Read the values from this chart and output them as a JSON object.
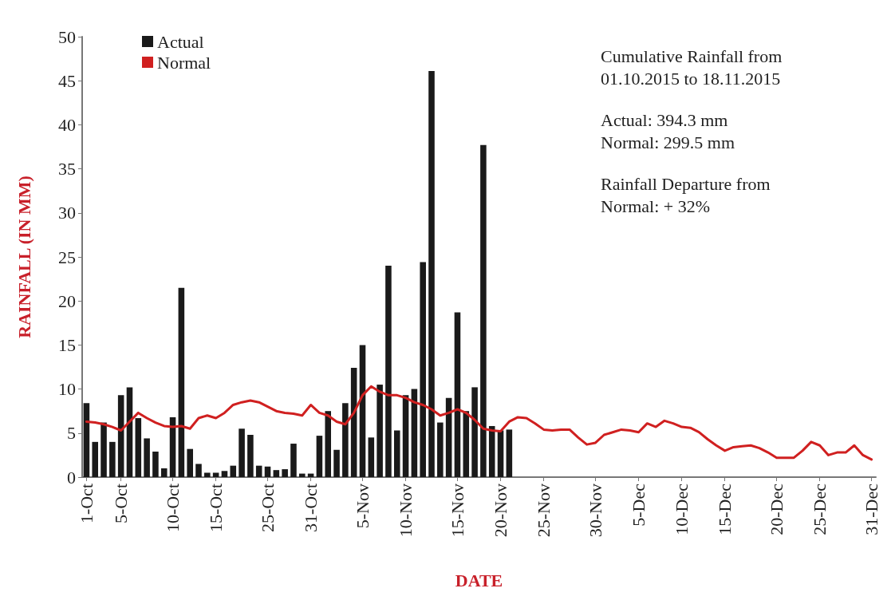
{
  "chart_data": {
    "type": "bar",
    "xlabel": "DATE",
    "ylabel": "RAINFALL (IN MM)",
    "categories": [
      "1-Oct",
      null,
      null,
      null,
      "5-Oct",
      null,
      null,
      null,
      null,
      null,
      "10-Oct",
      null,
      null,
      null,
      null,
      "15-Oct",
      null,
      null,
      null,
      null,
      null,
      "25-Oct",
      null,
      null,
      null,
      null,
      "31-Oct",
      null,
      null,
      null,
      null,
      null,
      "5-Nov",
      null,
      null,
      null,
      null,
      "10-Nov",
      null,
      null,
      null,
      null,
      null,
      "15-Nov",
      null,
      null,
      null,
      null,
      "20-Nov",
      null,
      null,
      null,
      null,
      "25-Nov",
      null,
      null,
      null,
      null,
      null,
      "30-Nov",
      null,
      null,
      null,
      null,
      "5-Dec",
      null,
      null,
      null,
      null,
      "10-Dec",
      null,
      null,
      null,
      null,
      "15-Dec",
      null,
      null,
      null,
      null,
      null,
      "20-Dec",
      null,
      null,
      null,
      null,
      "25-Dec",
      null,
      null,
      null,
      null,
      null,
      "31-Dec"
    ],
    "series": [
      {
        "name": "Actual",
        "color": "#1a1a1a",
        "values": [
          8.4,
          4.0,
          6.2,
          4.0,
          9.3,
          10.2,
          6.7,
          4.4,
          2.9,
          1.0,
          6.8,
          21.5,
          3.2,
          1.5,
          0.5,
          0.5,
          0.7,
          1.3,
          5.5,
          4.8,
          1.3,
          1.2,
          0.8,
          0.9,
          3.8,
          0.4,
          0.4,
          4.7,
          7.5,
          3.1,
          8.4,
          12.4,
          15.0,
          4.5,
          10.5,
          24.0,
          5.3,
          9.3,
          10.0,
          24.4,
          46.1,
          6.2,
          9.0,
          18.7,
          7.5,
          10.2,
          37.7,
          5.8,
          5.3,
          5.4,
          null,
          null,
          null,
          null,
          null,
          null,
          null,
          null,
          null,
          null,
          null,
          null,
          null,
          null,
          null,
          null,
          null,
          null,
          null,
          null,
          null,
          null,
          null,
          null,
          null,
          null,
          null,
          null,
          null,
          null,
          null,
          null,
          null,
          null,
          null,
          null,
          null,
          null,
          null,
          null,
          null,
          null
        ]
      },
      {
        "name": "Normal",
        "type": "line",
        "color": "#d02020",
        "values": [
          6.3,
          6.2,
          6.0,
          5.7,
          5.3,
          6.3,
          7.3,
          6.7,
          6.2,
          5.8,
          5.7,
          5.8,
          5.5,
          6.7,
          7.0,
          6.7,
          7.3,
          8.2,
          8.5,
          8.7,
          8.5,
          8.0,
          7.5,
          7.3,
          7.2,
          7.0,
          8.2,
          7.3,
          7.0,
          6.3,
          6.0,
          7.3,
          9.3,
          10.3,
          9.7,
          9.3,
          9.3,
          9.0,
          8.5,
          8.2,
          7.7,
          7.0,
          7.3,
          7.7,
          7.3,
          6.5,
          5.5,
          5.3,
          5.2,
          6.3,
          6.8,
          6.7,
          6.1,
          5.4,
          5.3,
          5.4,
          5.4,
          4.5,
          3.7,
          3.9,
          4.8,
          5.1,
          5.4,
          5.3,
          5.1,
          6.1,
          5.7,
          6.4,
          6.1,
          5.7,
          5.6,
          5.1,
          4.3,
          3.6,
          3.0,
          3.4,
          3.5,
          3.6,
          3.3,
          2.8,
          2.2,
          2.2,
          2.2,
          3.0,
          4.0,
          3.6,
          2.5,
          2.8,
          2.8,
          3.6,
          2.5,
          2.0
        ]
      }
    ],
    "ylim": [
      0,
      50
    ],
    "yticks": [
      0,
      5,
      10,
      15,
      20,
      25,
      30,
      35,
      40,
      45,
      50
    ],
    "grid": false,
    "legend": "top left",
    "marker": "none",
    "line_style": "solid",
    "annotations": [
      "Cumulative Rainfall from\n01.10.2015 to 18.11.2015",
      "Actual: 394.3 mm\nNormal: 299.5 mm",
      "Rainfall Departure from\nNormal: + 32%"
    ]
  }
}
